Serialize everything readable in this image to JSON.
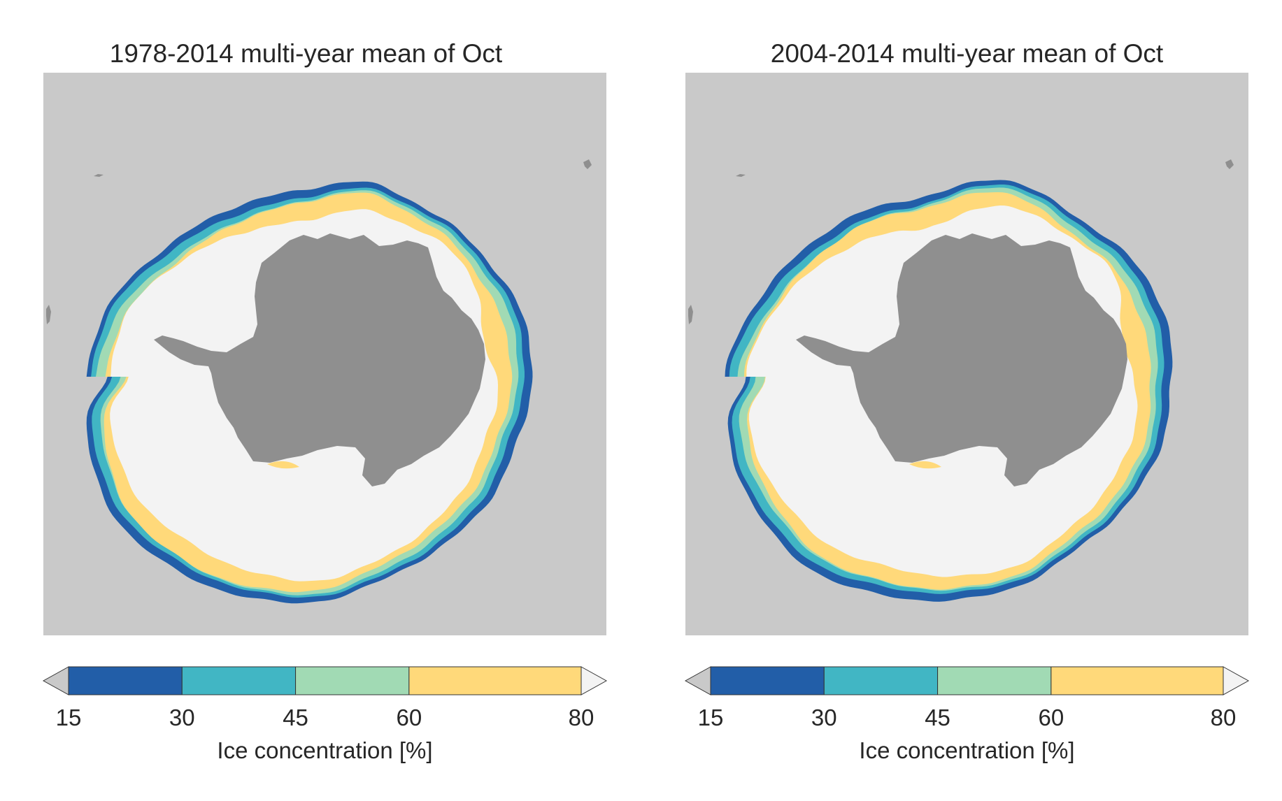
{
  "panels": [
    {
      "title": "1978-2014 multi-year mean of Oct"
    },
    {
      "title": "2004-2014 multi-year mean of Oct"
    }
  ],
  "colorbar": {
    "label": "Ice concentration [%]",
    "ticks": [
      "15",
      "30",
      "45",
      "60",
      "80"
    ],
    "bounds": [
      15,
      30,
      45,
      60,
      80
    ],
    "under_color": "#c9c9c9",
    "over_color": "#f3f3f3",
    "bin_colors": [
      "#225ea8",
      "#41b6c4",
      "#a1dab4",
      "#ffd97a"
    ]
  },
  "map": {
    "projection": "south-polar-stereographic",
    "background_color": "#c9c9c9",
    "land_color": "#8f8f8f",
    "pack_ice_color": "#f3f3f3"
  }
}
